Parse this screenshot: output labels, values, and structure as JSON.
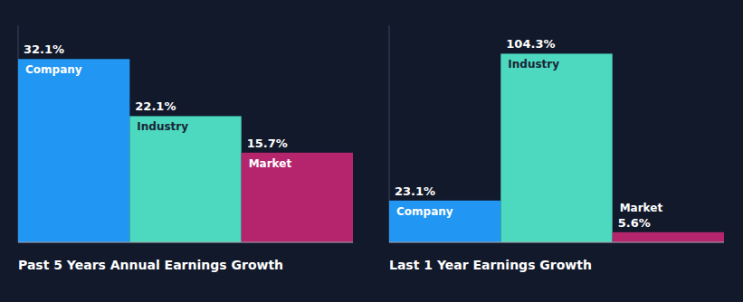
{
  "chart_data": [
    {
      "type": "bar",
      "title": "Past 5 Years Annual Earnings Growth",
      "categories": [
        "Company",
        "Industry",
        "Market"
      ],
      "values": [
        32.1,
        22.1,
        15.7
      ],
      "value_labels": [
        "32.1%",
        "22.1%",
        "15.7%"
      ],
      "colors": [
        "#2196f3",
        "#4dd9c0",
        "#b5256e"
      ],
      "ylim": [
        0,
        38
      ],
      "data_labels": true,
      "tick_labels": false,
      "grid": false
    },
    {
      "type": "bar",
      "title": "Last 1 Year Earnings Growth",
      "categories": [
        "Company",
        "Industry",
        "Market"
      ],
      "values": [
        23.1,
        104.3,
        5.6
      ],
      "value_labels": [
        "23.1%",
        "104.3%",
        "5.6%"
      ],
      "colors": [
        "#2196f3",
        "#4dd9c0",
        "#b5256e"
      ],
      "ylim": [
        0,
        120
      ],
      "data_labels": true,
      "tick_labels": false,
      "grid": false
    }
  ]
}
